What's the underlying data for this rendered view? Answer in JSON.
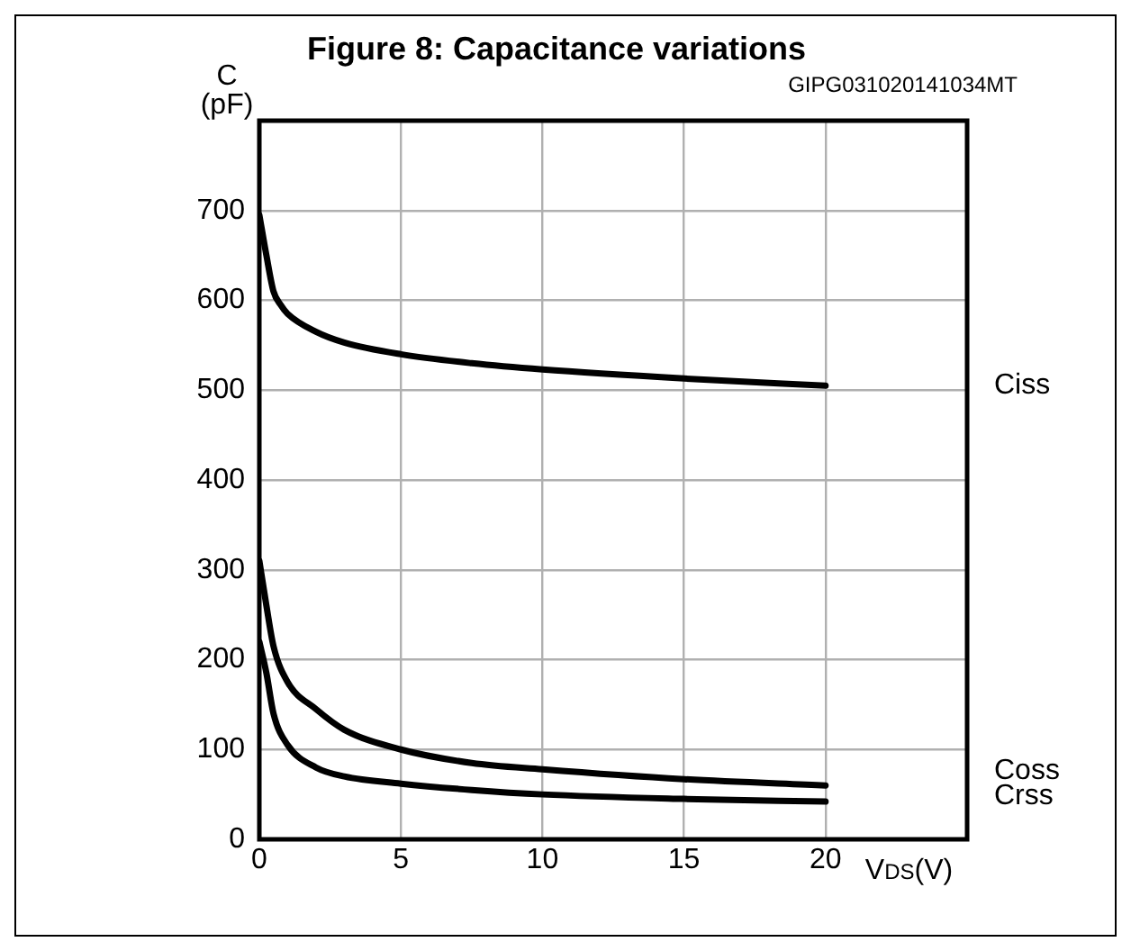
{
  "chart_data": {
    "type": "line",
    "title": "Figure 8: Capacitance variations",
    "annotations": [
      "GIPG031020141034MT"
    ],
    "xlabel": "V$_{DS}$(V)",
    "ylabel": "C (pF)",
    "xlim": [
      0,
      25
    ],
    "xticks": [
      0,
      5,
      10,
      15,
      20
    ],
    "ylim": [
      0,
      800
    ],
    "yticks": [
      0,
      100,
      200,
      300,
      400,
      500,
      600,
      700
    ],
    "grid": true,
    "legend": false,
    "marker": "none",
    "line_style": "solid",
    "x": [
      0,
      0.25,
      0.5,
      1,
      2,
      3,
      5,
      7.5,
      10,
      15,
      20
    ],
    "series": [
      {
        "name": "Ciss",
        "color": "#000000",
        "x": [
          0,
          0.25,
          0.5,
          0.75,
          1,
          2,
          3,
          5,
          7.5,
          10,
          15,
          20
        ],
        "values": [
          695,
          650,
          610,
          595,
          585,
          565,
          553,
          540,
          530,
          523,
          513,
          505
        ]
      },
      {
        "name": "Coss",
        "color": "#000000",
        "values": [
          310,
          260,
          215,
          175,
          145,
          122,
          100,
          85,
          78,
          67,
          60
        ]
      },
      {
        "name": "Crss",
        "color": "#000000",
        "values": [
          220,
          185,
          140,
          105,
          80,
          70,
          62,
          55,
          50,
          45,
          42
        ]
      }
    ]
  }
}
